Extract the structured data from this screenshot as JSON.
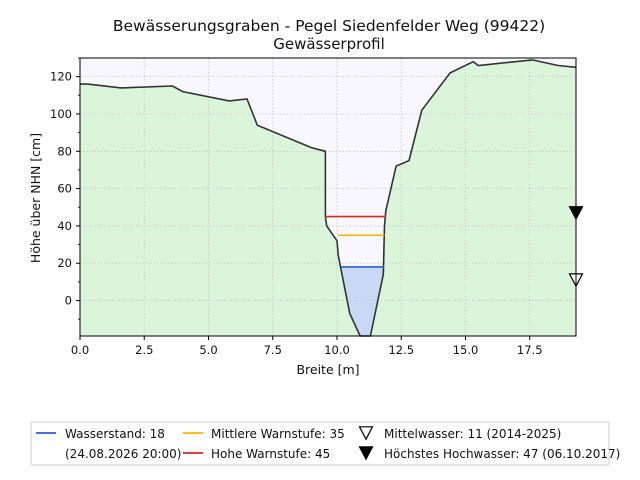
{
  "chart_data": {
    "type": "area",
    "title": "Bewässerungsgraben - Pegel Siedenfelder Weg (99422)",
    "subtitle": "Gewässerprofil",
    "xlabel": "Breite [m]",
    "ylabel": "Höhe über NHN [cm]",
    "xlim": [
      0,
      19.3
    ],
    "ylim": [
      -19,
      130
    ],
    "x_ticks": [
      0,
      2.5,
      5,
      7.5,
      10,
      12.5,
      15,
      17.5
    ],
    "x_tick_labels": [
      "0.0",
      "2.5",
      "5.0",
      "7.5",
      "10.0",
      "12.5",
      "15.0",
      "17.5"
    ],
    "y_ticks": [
      0,
      20,
      40,
      60,
      80,
      100,
      120
    ],
    "y_tick_labels": [
      "0",
      "20",
      "40",
      "60",
      "80",
      "100",
      "120"
    ],
    "grid": true,
    "legend_position": "bottom",
    "colors": {
      "ground_fill": "#dbf5db",
      "sky_fill": "#f7f7fd",
      "profile_line": "#333333",
      "water_fill": "#c9d8f5",
      "water_line": "#2a5bd7",
      "warn_mid": "#f2b705",
      "warn_high": "#d62728",
      "marker": "#000000"
    },
    "profile": {
      "x": [
        0,
        0.3,
        1.6,
        3.6,
        4.0,
        5.8,
        6.5,
        6.9,
        9.0,
        9.55,
        9.55,
        9.6,
        10.0,
        10.05,
        10.5,
        10.9,
        11.3,
        11.8,
        11.85,
        11.9,
        12.3,
        12.8,
        13.3,
        14.4,
        15.3,
        15.5,
        17.6,
        18.6,
        19.3
      ],
      "y": [
        116,
        116,
        114,
        115,
        112,
        107,
        108,
        94,
        82,
        80,
        45,
        40,
        32,
        24,
        -7,
        -19,
        -19,
        14,
        40,
        48,
        72,
        75,
        102,
        122,
        128,
        126,
        129,
        126,
        125
      ]
    },
    "water_level": 18,
    "levels": [
      {
        "name": "Wasserstand",
        "value": 18,
        "x_range": [
          10.15,
          11.82
        ]
      },
      {
        "name": "Mittlere Warnstufe",
        "value": 35,
        "x_range": [
          10.05,
          11.85
        ]
      },
      {
        "name": "Hohe Warnstufe",
        "value": 45,
        "x_range": [
          9.55,
          11.9
        ]
      }
    ],
    "markers": [
      {
        "name": "Mittelwasser",
        "value": 11,
        "x": 19.3,
        "symbol": "open-down-triangle"
      },
      {
        "name": "Höchstes Hochwasser",
        "value": 47,
        "x": 19.3,
        "symbol": "filled-down-triangle"
      }
    ],
    "legend": [
      {
        "key": "water",
        "label": "Wasserstand: 18",
        "label2": "(24.08.2026 20:00)"
      },
      {
        "key": "mid",
        "label": "Mittlere Warnstufe: 35"
      },
      {
        "key": "high",
        "label": "Hohe Warnstufe: 45"
      },
      {
        "key": "mw",
        "label": "Mittelwasser: 11 (2014-2025)"
      },
      {
        "key": "hhw",
        "label": "Höchstes Hochwasser: 47 (06.10.2017)"
      }
    ]
  }
}
